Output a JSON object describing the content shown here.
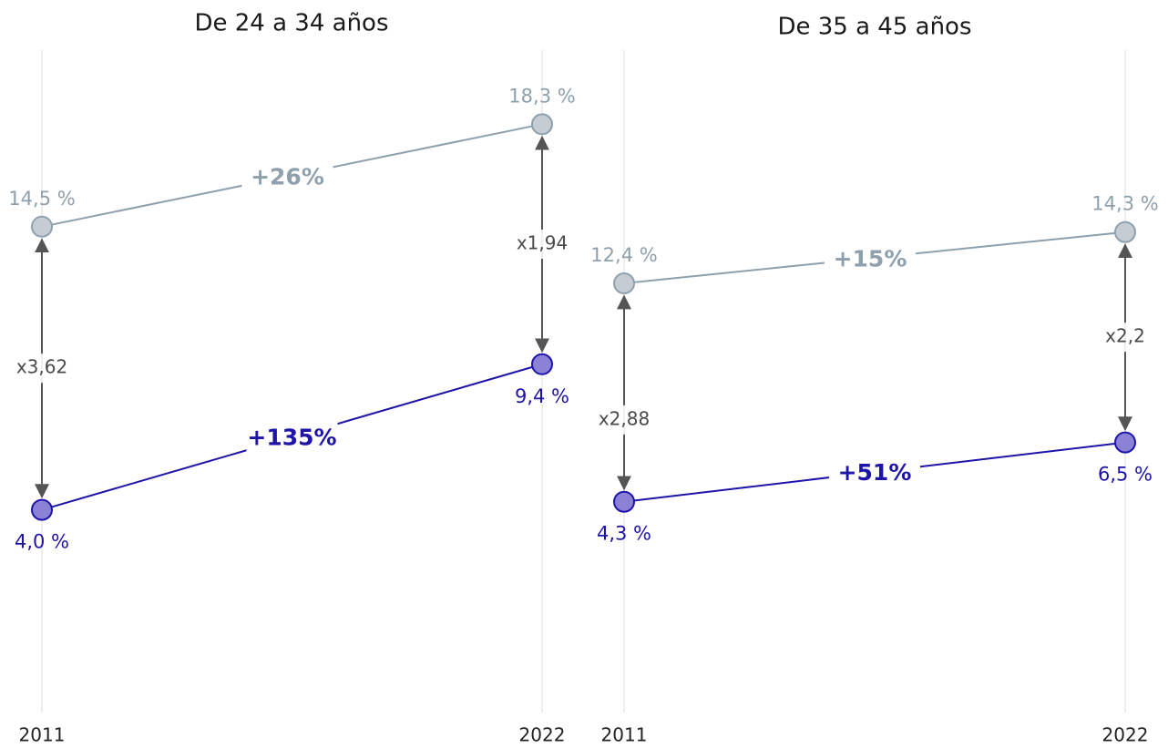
{
  "colors": {
    "top_series": "#8fa0ad",
    "top_fill": "#c5ccd4",
    "bottom_series": "#1f14a8",
    "bottom_fill": "#8b82d6",
    "arrow": "#555555",
    "grid": "#dddddd"
  },
  "chart_data": [
    {
      "type": "line",
      "title": "De 24 a 34 años",
      "x": [
        "2011",
        "2022"
      ],
      "series": [
        {
          "values": [
            14.5,
            18.3
          ],
          "labels": [
            "14,5 %",
            "18,3 %"
          ],
          "change_label": "+26%"
        },
        {
          "values": [
            4.0,
            9.4
          ],
          "labels": [
            "4,0 %",
            "9,4 %"
          ],
          "change_label": "+135%"
        }
      ],
      "ratios": [
        "x3,62",
        "x1,94"
      ]
    },
    {
      "type": "line",
      "title": "De 35 a 45 años",
      "x": [
        "2011",
        "2022"
      ],
      "series": [
        {
          "values": [
            12.4,
            14.3
          ],
          "labels": [
            "12,4 %",
            "14,3 %"
          ],
          "change_label": "+15%"
        },
        {
          "values": [
            4.3,
            6.5
          ],
          "labels": [
            "4,3 %",
            "6,5 %"
          ],
          "change_label": "+51%"
        }
      ],
      "ratios": [
        "x2,88",
        "x2,2"
      ]
    }
  ]
}
